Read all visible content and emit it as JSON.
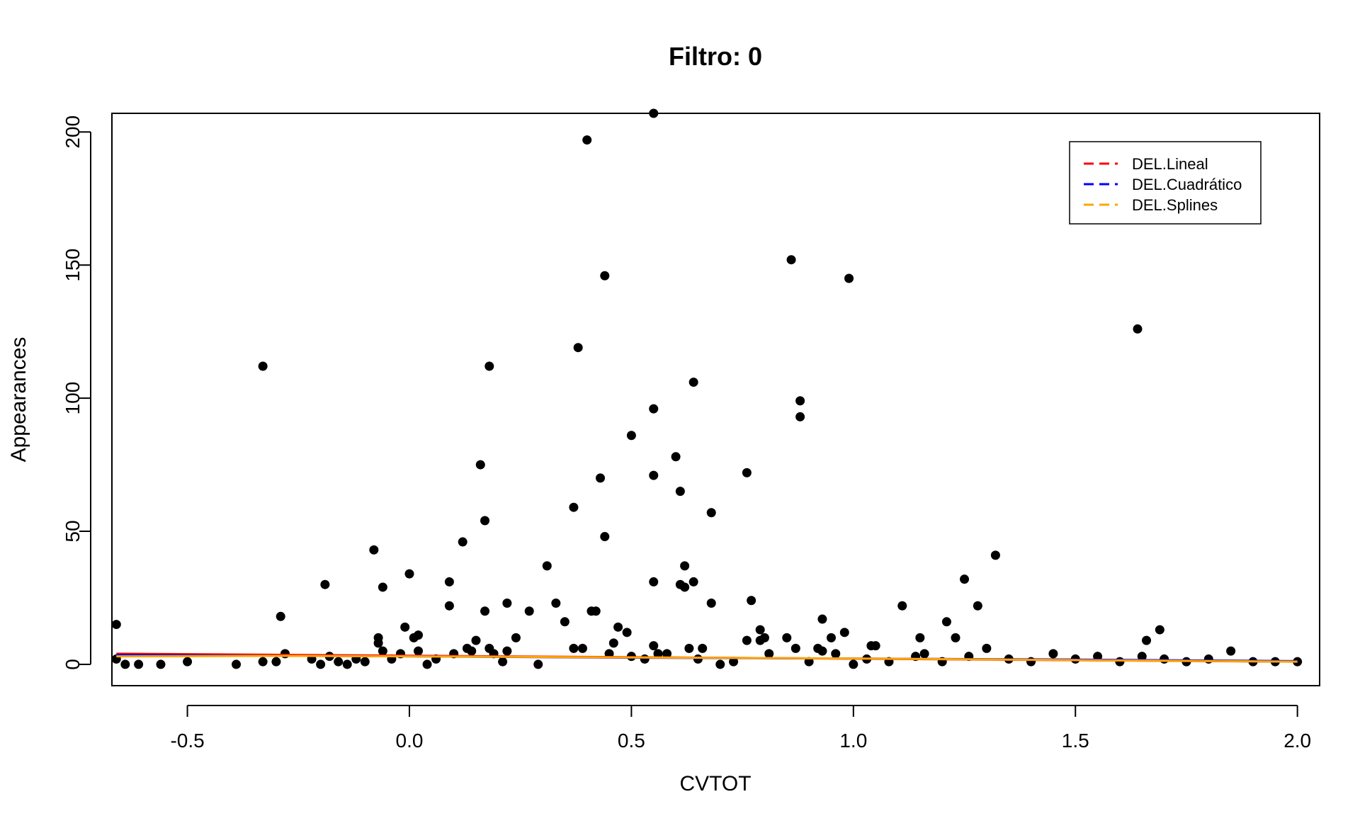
{
  "chart_data": {
    "type": "scatter",
    "title": "Filtro:  0",
    "xlabel": "CVTOT",
    "ylabel": "Appearances",
    "xlim": [
      -0.67,
      2.05
    ],
    "ylim": [
      -8,
      207
    ],
    "xticks": [
      -0.5,
      0.0,
      0.5,
      1.0,
      1.5,
      2.0
    ],
    "xtick_labels": [
      "-0.5",
      "0.0",
      "0.5",
      "1.0",
      "1.5",
      "2.0"
    ],
    "yticks": [
      0,
      50,
      100,
      150,
      200
    ],
    "ytick_labels": [
      "0",
      "50",
      "100",
      "150",
      "200"
    ],
    "grid": false,
    "legend": {
      "position": "top-right",
      "entries": [
        {
          "label": "DEL.Lineal",
          "color": "#ff0000"
        },
        {
          "label": "DEL.Cuadrático",
          "color": "#0000ff"
        },
        {
          "label": "DEL.Splines",
          "color": "#ffa500"
        }
      ]
    },
    "point_color": "#000000",
    "points": [
      [
        -0.66,
        15
      ],
      [
        -0.66,
        2
      ],
      [
        -0.64,
        0
      ],
      [
        -0.61,
        0
      ],
      [
        -0.56,
        0
      ],
      [
        -0.5,
        1
      ],
      [
        -0.39,
        0
      ],
      [
        -0.33,
        112
      ],
      [
        -0.33,
        1
      ],
      [
        -0.3,
        1
      ],
      [
        -0.29,
        18
      ],
      [
        -0.28,
        4
      ],
      [
        -0.22,
        2
      ],
      [
        -0.2,
        0
      ],
      [
        -0.19,
        30
      ],
      [
        -0.18,
        3
      ],
      [
        -0.16,
        1
      ],
      [
        -0.14,
        0
      ],
      [
        -0.12,
        2
      ],
      [
        -0.1,
        1
      ],
      [
        -0.08,
        43
      ],
      [
        -0.07,
        10
      ],
      [
        -0.07,
        8
      ],
      [
        -0.06,
        29
      ],
      [
        -0.06,
        5
      ],
      [
        -0.04,
        2
      ],
      [
        -0.02,
        4
      ],
      [
        -0.01,
        14
      ],
      [
        0.0,
        34
      ],
      [
        0.01,
        10
      ],
      [
        0.02,
        11
      ],
      [
        0.02,
        5
      ],
      [
        0.04,
        0
      ],
      [
        0.06,
        2
      ],
      [
        0.09,
        22
      ],
      [
        0.09,
        31
      ],
      [
        0.1,
        4
      ],
      [
        0.12,
        46
      ],
      [
        0.13,
        6
      ],
      [
        0.14,
        5
      ],
      [
        0.15,
        9
      ],
      [
        0.16,
        75
      ],
      [
        0.17,
        20
      ],
      [
        0.17,
        54
      ],
      [
        0.18,
        112
      ],
      [
        0.18,
        6
      ],
      [
        0.19,
        4
      ],
      [
        0.21,
        1
      ],
      [
        0.22,
        23
      ],
      [
        0.22,
        5
      ],
      [
        0.24,
        10
      ],
      [
        0.27,
        20
      ],
      [
        0.29,
        0
      ],
      [
        0.31,
        37
      ],
      [
        0.33,
        23
      ],
      [
        0.35,
        16
      ],
      [
        0.37,
        59
      ],
      [
        0.37,
        6
      ],
      [
        0.38,
        119
      ],
      [
        0.39,
        6
      ],
      [
        0.4,
        197
      ],
      [
        0.41,
        20
      ],
      [
        0.42,
        20
      ],
      [
        0.43,
        70
      ],
      [
        0.44,
        48
      ],
      [
        0.44,
        146
      ],
      [
        0.45,
        4
      ],
      [
        0.46,
        8
      ],
      [
        0.47,
        14
      ],
      [
        0.49,
        12
      ],
      [
        0.5,
        86
      ],
      [
        0.5,
        3
      ],
      [
        0.53,
        2
      ],
      [
        0.55,
        207
      ],
      [
        0.55,
        96
      ],
      [
        0.55,
        71
      ],
      [
        0.55,
        31
      ],
      [
        0.55,
        7
      ],
      [
        0.56,
        4
      ],
      [
        0.58,
        4
      ],
      [
        0.6,
        78
      ],
      [
        0.61,
        65
      ],
      [
        0.61,
        30
      ],
      [
        0.62,
        29
      ],
      [
        0.62,
        37
      ],
      [
        0.63,
        6
      ],
      [
        0.64,
        31
      ],
      [
        0.64,
        106
      ],
      [
        0.65,
        2
      ],
      [
        0.66,
        6
      ],
      [
        0.68,
        57
      ],
      [
        0.68,
        23
      ],
      [
        0.7,
        0
      ],
      [
        0.73,
        1
      ],
      [
        0.76,
        72
      ],
      [
        0.76,
        9
      ],
      [
        0.77,
        24
      ],
      [
        0.79,
        9
      ],
      [
        0.79,
        13
      ],
      [
        0.8,
        10
      ],
      [
        0.81,
        4
      ],
      [
        0.85,
        10
      ],
      [
        0.86,
        152
      ],
      [
        0.87,
        6
      ],
      [
        0.88,
        99
      ],
      [
        0.88,
        93
      ],
      [
        0.9,
        1
      ],
      [
        0.92,
        6
      ],
      [
        0.93,
        17
      ],
      [
        0.93,
        5
      ],
      [
        0.95,
        10
      ],
      [
        0.96,
        4
      ],
      [
        0.98,
        12
      ],
      [
        0.99,
        145
      ],
      [
        1.0,
        0
      ],
      [
        1.03,
        2
      ],
      [
        1.04,
        7
      ],
      [
        1.05,
        7
      ],
      [
        1.08,
        1
      ],
      [
        1.11,
        22
      ],
      [
        1.14,
        3
      ],
      [
        1.15,
        10
      ],
      [
        1.16,
        4
      ],
      [
        1.2,
        1
      ],
      [
        1.21,
        16
      ],
      [
        1.23,
        10
      ],
      [
        1.25,
        32
      ],
      [
        1.26,
        3
      ],
      [
        1.28,
        22
      ],
      [
        1.3,
        6
      ],
      [
        1.32,
        41
      ],
      [
        1.35,
        2
      ],
      [
        1.4,
        1
      ],
      [
        1.45,
        4
      ],
      [
        1.5,
        2
      ],
      [
        1.55,
        3
      ],
      [
        1.6,
        1
      ],
      [
        1.64,
        126
      ],
      [
        1.65,
        3
      ],
      [
        1.66,
        9
      ],
      [
        1.69,
        13
      ],
      [
        1.7,
        2
      ],
      [
        1.75,
        1
      ],
      [
        1.8,
        2
      ],
      [
        1.85,
        5
      ],
      [
        1.9,
        1
      ],
      [
        1.95,
        1
      ],
      [
        2.0,
        1
      ]
    ],
    "series": [
      {
        "name": "DEL.Lineal",
        "color": "#ff0000",
        "x": [
          -0.66,
          2.0
        ],
        "y": [
          4,
          1
        ]
      },
      {
        "name": "DEL.Cuadrático",
        "color": "#0000ff",
        "x": [
          -0.66,
          0.0,
          0.5,
          1.0,
          1.5,
          2.0
        ],
        "y": [
          3.5,
          3,
          2.5,
          2.2,
          1.8,
          1.2
        ]
      },
      {
        "name": "DEL.Splines",
        "color": "#ffa500",
        "x": [
          -0.66,
          -0.3,
          0.0,
          0.5,
          1.0,
          1.5,
          2.0
        ],
        "y": [
          3,
          3.2,
          3,
          2.6,
          2.2,
          1.6,
          1
        ]
      }
    ]
  }
}
